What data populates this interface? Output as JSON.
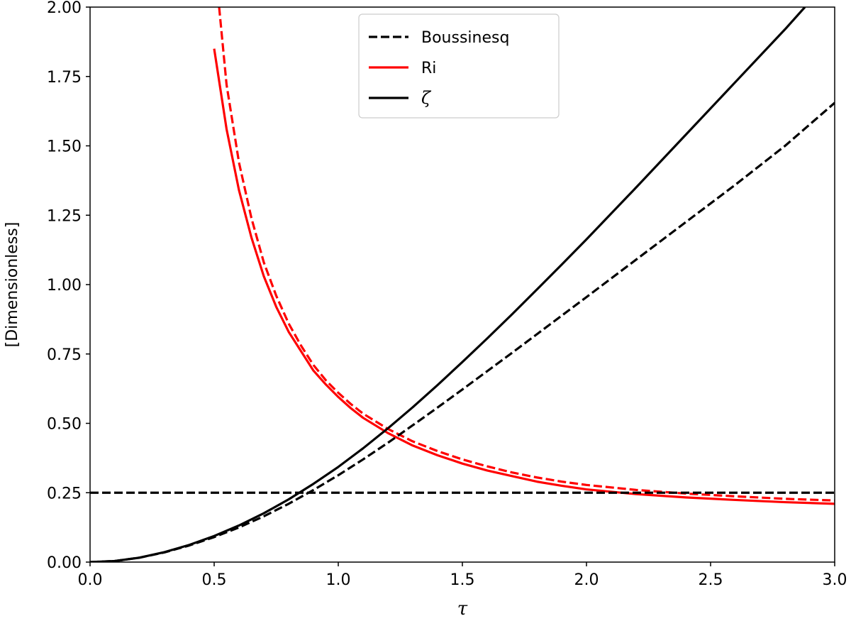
{
  "chart_data": {
    "type": "line",
    "title": "",
    "xlabel": "τ",
    "ylabel": "[Dimensionless]",
    "xlim": [
      0,
      3
    ],
    "ylim": [
      0,
      2
    ],
    "xticks": [
      "0.0",
      "0.5",
      "1.0",
      "1.5",
      "2.0",
      "2.5",
      "3.0"
    ],
    "yticks": [
      "0.00",
      "0.25",
      "0.50",
      "0.75",
      "1.00",
      "1.25",
      "1.50",
      "1.75",
      "2.00"
    ],
    "grid": false,
    "legend_position": "top-center",
    "legend": [
      {
        "label": "Boussinesq",
        "color": "#000000",
        "style": "dashed"
      },
      {
        "label": "Ri",
        "color": "#ff0000",
        "style": "solid"
      },
      {
        "label": "ζ",
        "color": "#000000",
        "style": "solid"
      }
    ],
    "series": [
      {
        "name": "Ri",
        "color": "#ff0000",
        "style": "solid",
        "x": [
          0.5,
          0.55,
          0.6,
          0.65,
          0.7,
          0.75,
          0.8,
          0.85,
          0.9,
          0.95,
          1.0,
          1.05,
          1.1,
          1.2,
          1.3,
          1.4,
          1.5,
          1.6,
          1.7,
          1.8,
          1.9,
          2.0,
          2.2,
          2.4,
          2.6,
          2.8,
          3.0
        ],
        "y": [
          1.85,
          1.56,
          1.34,
          1.17,
          1.03,
          0.92,
          0.83,
          0.76,
          0.69,
          0.64,
          0.595,
          0.555,
          0.52,
          0.465,
          0.42,
          0.385,
          0.355,
          0.33,
          0.31,
          0.29,
          0.275,
          0.262,
          0.245,
          0.233,
          0.224,
          0.216,
          0.21
        ]
      },
      {
        "name": "Ri (Boussinesq)",
        "color": "#ff0000",
        "style": "dashed",
        "x": [
          0.52,
          0.55,
          0.6,
          0.65,
          0.7,
          0.75,
          0.8,
          0.85,
          0.9,
          0.95,
          1.0,
          1.05,
          1.1,
          1.2,
          1.3,
          1.4,
          1.5,
          1.6,
          1.7,
          1.8,
          1.9,
          2.0,
          2.2,
          2.4,
          2.6,
          2.8,
          3.0
        ],
        "y": [
          2.0,
          1.72,
          1.44,
          1.24,
          1.08,
          0.96,
          0.86,
          0.78,
          0.71,
          0.655,
          0.61,
          0.57,
          0.535,
          0.48,
          0.435,
          0.4,
          0.37,
          0.345,
          0.323,
          0.305,
          0.29,
          0.278,
          0.26,
          0.247,
          0.237,
          0.228,
          0.222
        ]
      },
      {
        "name": "ζ",
        "color": "#000000",
        "style": "solid",
        "x": [
          0.0,
          0.1,
          0.2,
          0.3,
          0.4,
          0.5,
          0.6,
          0.7,
          0.8,
          0.9,
          1.0,
          1.1,
          1.2,
          1.3,
          1.4,
          1.5,
          1.6,
          1.7,
          1.8,
          1.9,
          2.0,
          2.2,
          2.4,
          2.6,
          2.8,
          2.88
        ],
        "y": [
          0.0,
          0.004,
          0.016,
          0.036,
          0.062,
          0.094,
          0.132,
          0.176,
          0.226,
          0.282,
          0.343,
          0.41,
          0.482,
          0.558,
          0.638,
          0.721,
          0.806,
          0.893,
          0.982,
          1.072,
          1.163,
          1.35,
          1.54,
          1.73,
          1.92,
          2.0
        ]
      },
      {
        "name": "ζ (Boussinesq)",
        "color": "#000000",
        "style": "dashed",
        "x": [
          0.0,
          0.1,
          0.2,
          0.3,
          0.4,
          0.5,
          0.6,
          0.7,
          0.8,
          0.9,
          1.0,
          1.1,
          1.2,
          1.3,
          1.4,
          1.5,
          1.6,
          1.7,
          1.8,
          1.9,
          2.0,
          2.2,
          2.4,
          2.6,
          2.8,
          3.0
        ],
        "y": [
          0.0,
          0.004,
          0.016,
          0.035,
          0.06,
          0.09,
          0.125,
          0.165,
          0.21,
          0.26,
          0.313,
          0.37,
          0.43,
          0.493,
          0.557,
          0.622,
          0.688,
          0.754,
          0.821,
          0.888,
          0.955,
          1.09,
          1.225,
          1.36,
          1.5,
          1.655
        ]
      },
      {
        "name": "Ri = 0.25",
        "color": "#000000",
        "style": "dashed",
        "x": [
          0.0,
          3.0
        ],
        "y": [
          0.25,
          0.25
        ]
      }
    ]
  }
}
